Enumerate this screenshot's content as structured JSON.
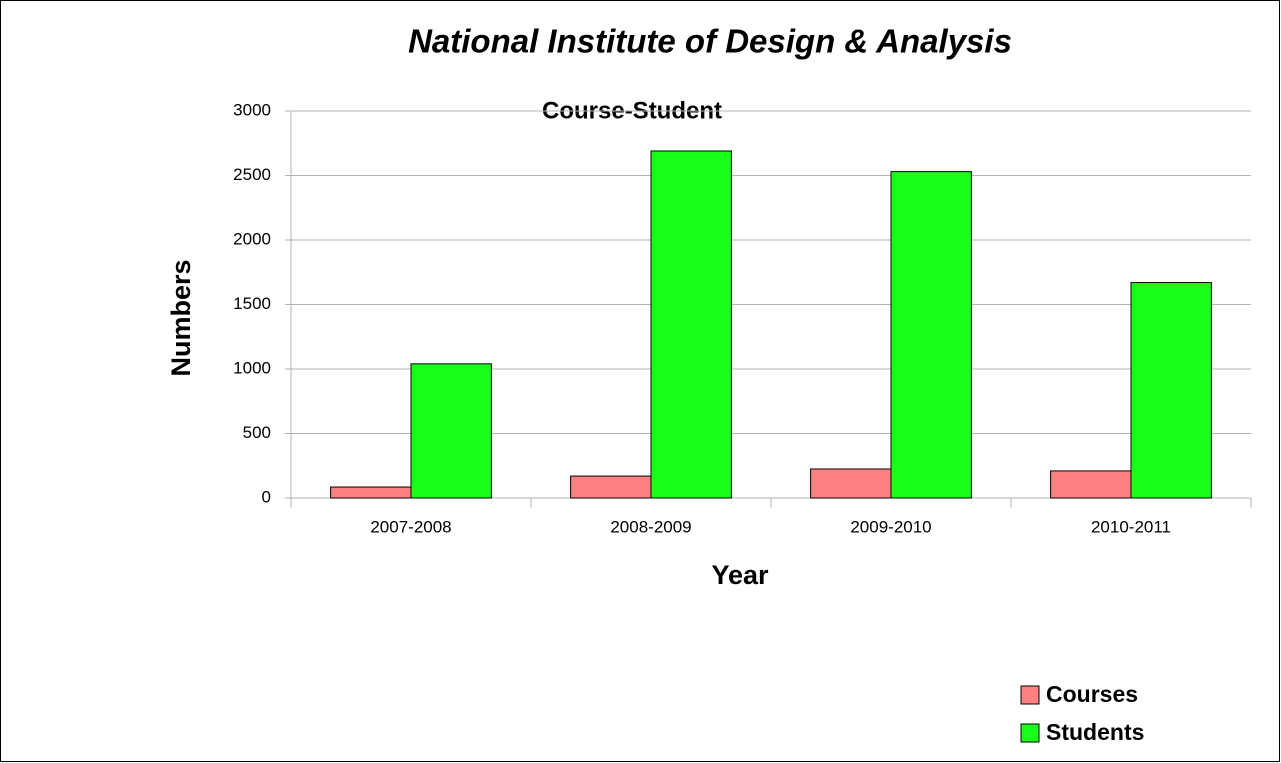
{
  "chart_data": {
    "type": "bar",
    "title": "National Institute of Design & Analysis",
    "subtitle": "Course-Student",
    "x_label": "Year",
    "y_label": "Numbers",
    "categories": [
      "2007-2008",
      "2008-2009",
      "2009-2010",
      "2010-2011"
    ],
    "series": [
      {
        "name": "Courses",
        "color": "#ff8080",
        "values": [
          85,
          170,
          225,
          210
        ]
      },
      {
        "name": "Students",
        "color": "#1aff1a",
        "values": [
          1040,
          2690,
          2530,
          1670
        ]
      }
    ],
    "ylim": [
      0,
      3000
    ],
    "yticks": [
      0,
      500,
      1000,
      1500,
      2000,
      2500,
      3000
    ],
    "grid": true,
    "legend": "bottom-right"
  }
}
